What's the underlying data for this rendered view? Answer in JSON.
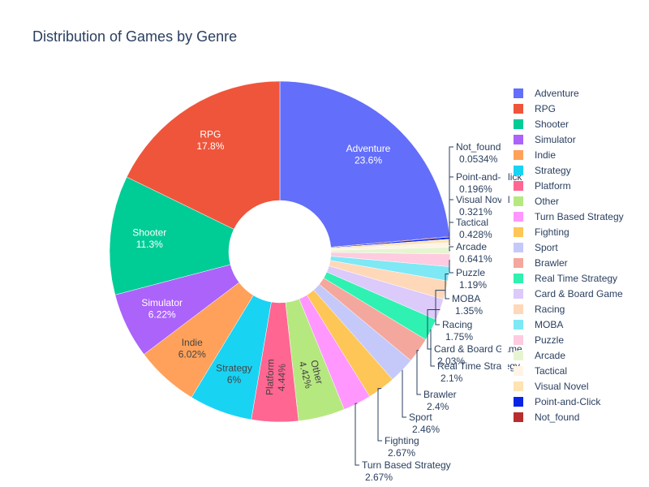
{
  "chart_data": {
    "type": "pie",
    "hole": true,
    "title": "Distribution of Games by Genre",
    "legend_placement": "right",
    "slices": [
      {
        "label": "Adventure",
        "value": 23.6,
        "text": "23.6%",
        "color": "#636efa",
        "pos": "inside"
      },
      {
        "label": "Not_found",
        "value": 0.0534,
        "text": "0.0534%",
        "color": "#b82e2e",
        "pos": "outside"
      },
      {
        "label": "Point-and-Click",
        "value": 0.196,
        "text": "0.196%",
        "color": "#0a24e6",
        "pos": "outside"
      },
      {
        "label": "Visual Novel",
        "value": 0.321,
        "text": "0.321%",
        "color": "#fee3b3",
        "pos": "outside"
      },
      {
        "label": "Tactical",
        "value": 0.428,
        "text": "0.428%",
        "color": "#fff4e6",
        "pos": "outside"
      },
      {
        "label": "Arcade",
        "value": 0.641,
        "text": "0.641%",
        "color": "#e6f5d0",
        "pos": "outside"
      },
      {
        "label": "Puzzle",
        "value": 1.19,
        "text": "1.19%",
        "color": "#fecbe0",
        "pos": "outside"
      },
      {
        "label": "MOBA",
        "value": 1.35,
        "text": "1.35%",
        "color": "#7ee8f5",
        "pos": "outside"
      },
      {
        "label": "Racing",
        "value": 1.75,
        "text": "1.75%",
        "color": "#fed8b8",
        "pos": "outside"
      },
      {
        "label": "Card & Board Game",
        "value": 2.03,
        "text": "2.03%",
        "color": "#dccafa",
        "pos": "outside"
      },
      {
        "label": "Real Time Strategy",
        "value": 2.1,
        "text": "2.1%",
        "color": "#2ff1b2",
        "pos": "outside"
      },
      {
        "label": "Brawler",
        "value": 2.4,
        "text": "2.4%",
        "color": "#f4a79d",
        "pos": "outside"
      },
      {
        "label": "Sport",
        "value": 2.46,
        "text": "2.46%",
        "color": "#c5c9f9",
        "pos": "outside"
      },
      {
        "label": "Fighting",
        "value": 2.67,
        "text": "2.67%",
        "color": "#fec656",
        "pos": "outside"
      },
      {
        "label": "Turn Based Strategy",
        "value": 2.67,
        "text": "2.67%",
        "color": "#ff97ff",
        "pos": "outside"
      },
      {
        "label": "Other",
        "value": 4.42,
        "text": "4.42%",
        "color": "#b6e880",
        "pos": "inside"
      },
      {
        "label": "Platform",
        "value": 4.44,
        "text": "4.44%",
        "color": "#ff6692",
        "pos": "inside"
      },
      {
        "label": "Strategy",
        "value": 6.0,
        "text": "6%",
        "color": "#19d3f3",
        "pos": "inside"
      },
      {
        "label": "Indie",
        "value": 6.02,
        "text": "6.02%",
        "color": "#ffa15a",
        "pos": "inside"
      },
      {
        "label": "Simulator",
        "value": 6.22,
        "text": "6.22%",
        "color": "#ab63fa",
        "pos": "inside"
      },
      {
        "label": "Shooter",
        "value": 11.3,
        "text": "11.3%",
        "color": "#00cc96",
        "pos": "inside"
      },
      {
        "label": "RPG",
        "value": 17.8,
        "text": "17.8%",
        "color": "#ef553b",
        "pos": "inside"
      }
    ],
    "legend_order": [
      "Adventure",
      "RPG",
      "Shooter",
      "Simulator",
      "Indie",
      "Strategy",
      "Platform",
      "Other",
      "Turn Based Strategy",
      "Fighting",
      "Sport",
      "Brawler",
      "Real Time Strategy",
      "Card & Board Game",
      "Racing",
      "MOBA",
      "Puzzle",
      "Arcade",
      "Tactical",
      "Visual Novel",
      "Point-and-Click",
      "Not_found"
    ]
  }
}
